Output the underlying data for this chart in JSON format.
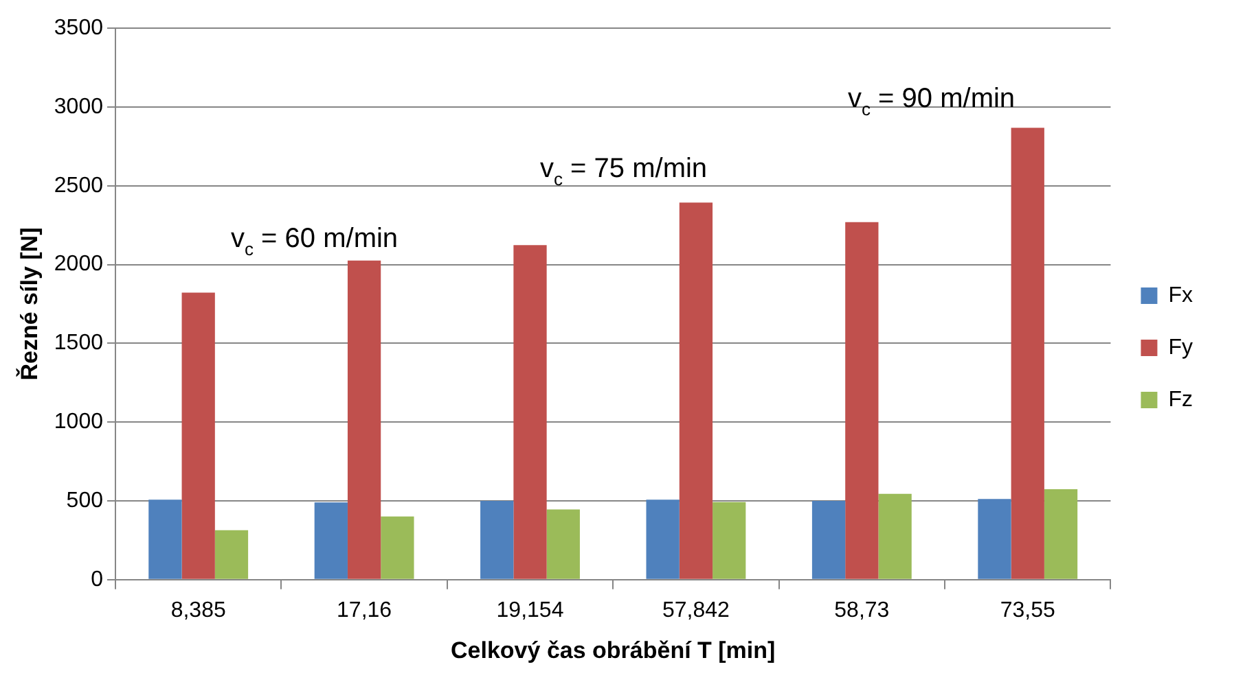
{
  "chart_data": {
    "type": "bar",
    "xlabel": "Celkový čas obrábění T [min]",
    "ylabel": "Řezné síly [N]",
    "categories": [
      "8,385",
      "17,16",
      "19,154",
      "57,842",
      "58,73",
      "73,55"
    ],
    "series": [
      {
        "name": "Fx",
        "color": "#4f81bd",
        "values": [
          508,
          490,
          500,
          508,
          500,
          512
        ]
      },
      {
        "name": "Fy",
        "color": "#c0504d",
        "values": [
          1822,
          2025,
          2124,
          2393,
          2269,
          2868
        ]
      },
      {
        "name": "Fz",
        "color": "#9bbb59",
        "values": [
          314,
          401,
          446,
          492,
          545,
          574
        ]
      }
    ],
    "ylim": [
      0,
      3500
    ],
    "yticks": [
      0,
      500,
      1000,
      1500,
      2000,
      2500,
      3000,
      3500
    ],
    "grid": "y",
    "legend": "right",
    "annotations": [
      "v$_{c}$ = 60 m/min",
      "v$_{c}$ = 75 m/min",
      "v$_{c}$ = 90 m/min"
    ]
  }
}
